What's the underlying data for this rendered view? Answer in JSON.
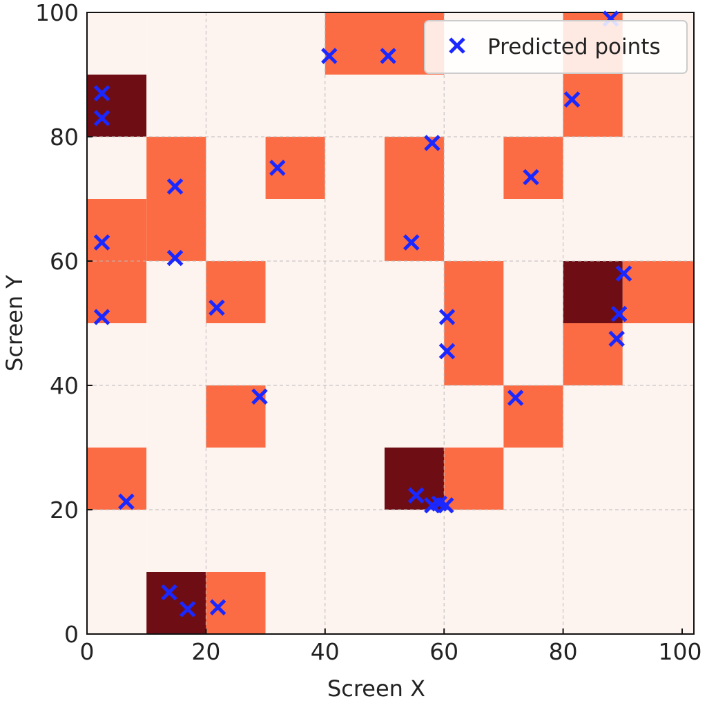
{
  "chart_data": [
    {
      "type": "heatmap",
      "xlabel": "Screen X",
      "ylabel": "Screen Y",
      "xlim": [
        0,
        100
      ],
      "ylim": [
        0,
        100
      ],
      "bin_size": 10,
      "x_ticks": [
        "0",
        "20",
        "40",
        "60",
        "80",
        "100"
      ],
      "y_ticks": [
        "0",
        "20",
        "40",
        "60",
        "80",
        "100"
      ],
      "grid": true,
      "colormap": "Reds",
      "colors": {
        "low": "#fdf3ef",
        "mid": "#fc6c44",
        "high": "#6e0d14"
      },
      "grid_rows_bottom_to_top": [
        [
          0,
          2,
          1,
          0,
          0,
          0,
          0,
          0,
          0,
          0
        ],
        [
          0,
          0,
          0,
          0,
          0,
          0,
          0,
          0,
          0,
          0
        ],
        [
          1,
          0,
          0,
          0,
          0,
          2,
          1,
          0,
          0,
          0
        ],
        [
          0,
          0,
          1,
          0,
          0,
          0,
          0,
          1,
          0,
          0
        ],
        [
          0,
          0,
          0,
          0,
          0,
          0,
          1,
          0,
          1,
          0
        ],
        [
          1,
          0,
          1,
          0,
          0,
          0,
          1,
          0,
          2,
          1
        ],
        [
          1,
          1,
          0,
          0,
          0,
          1,
          0,
          0,
          0,
          0
        ],
        [
          0,
          1,
          0,
          1,
          0,
          1,
          0,
          1,
          0,
          0
        ],
        [
          2,
          0,
          0,
          0,
          0,
          0,
          0,
          0,
          1,
          0
        ],
        [
          0,
          0,
          0,
          0,
          1,
          1,
          0,
          0,
          1,
          0
        ]
      ]
    },
    {
      "type": "scatter",
      "series": [
        {
          "name": "Predicted points",
          "marker": "x",
          "color": "#1a28ff",
          "points": [
            [
              2.5,
              87
            ],
            [
              2.5,
              83
            ],
            [
              40.7,
              93
            ],
            [
              50.6,
              93
            ],
            [
              88,
              99
            ],
            [
              81.5,
              86
            ],
            [
              58,
              79
            ],
            [
              32,
              75
            ],
            [
              14.8,
              72
            ],
            [
              74.6,
              73.5
            ],
            [
              2.5,
              63
            ],
            [
              54.5,
              63
            ],
            [
              14.8,
              60.5
            ],
            [
              90.2,
              58
            ],
            [
              21.8,
              52.5
            ],
            [
              2.5,
              51
            ],
            [
              60.5,
              51
            ],
            [
              89.4,
              51.5
            ],
            [
              60.5,
              45.5
            ],
            [
              89,
              47.5
            ],
            [
              29,
              38.2
            ],
            [
              72,
              38
            ],
            [
              6.6,
              21.3
            ],
            [
              55.3,
              22.3
            ],
            [
              58,
              20.7
            ],
            [
              59.2,
              21
            ],
            [
              60.3,
              20.7
            ],
            [
              13.8,
              6.7
            ],
            [
              16.9,
              4
            ],
            [
              22,
              4.3
            ]
          ]
        }
      ],
      "legend": {
        "position": "top-right",
        "label": "Predicted points"
      }
    }
  ]
}
